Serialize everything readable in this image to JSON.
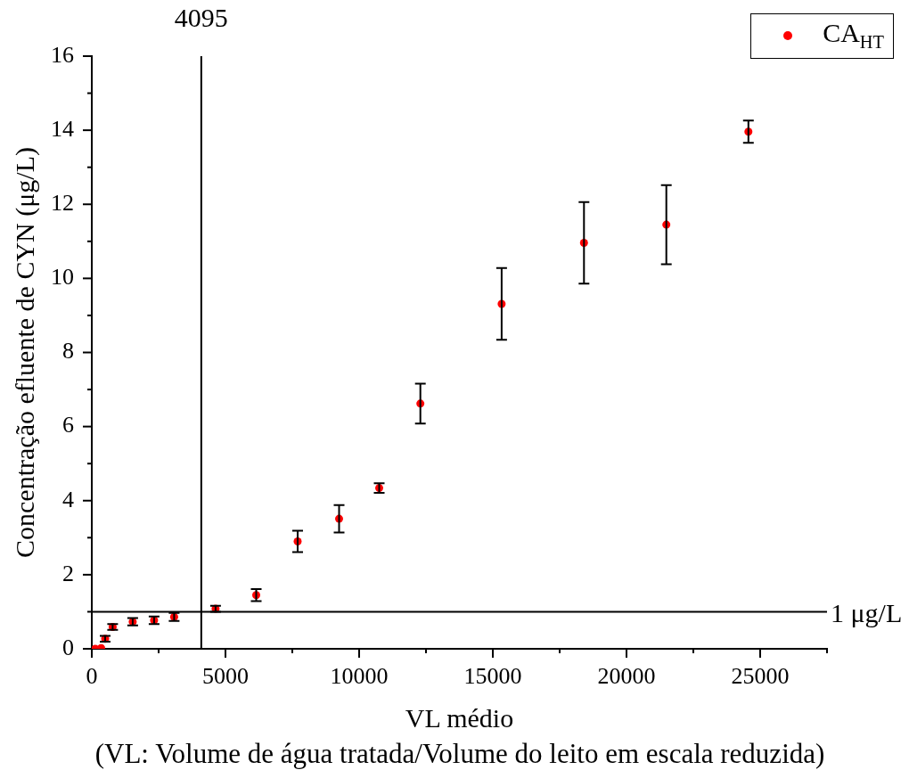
{
  "chart_data": {
    "type": "scatter",
    "xlabel": "VL médio",
    "ylabel": "Concentração efluente de CYN (μg/L)",
    "annotations": [
      "(VL: Volume de água tratada/Volume do leito em escala reduzida)"
    ],
    "series": [
      {
        "name": "CA$_{HT}$",
        "color": "#ff0000",
        "x": [
          130,
          350,
          500,
          780,
          1530,
          2330,
          3080,
          4630,
          6150,
          7700,
          9250,
          10750,
          12290,
          15330,
          18410,
          21490,
          24560
        ],
        "values": [
          0,
          0.02,
          0.27,
          0.59,
          0.73,
          0.77,
          0.86,
          1.08,
          1.45,
          2.9,
          3.51,
          4.34,
          6.62,
          9.31,
          10.96,
          11.45,
          13.96
        ],
        "errors": [
          null,
          null,
          0.08,
          0.08,
          0.1,
          0.1,
          0.11,
          0.08,
          0.16,
          0.29,
          0.37,
          0.13,
          0.54,
          0.97,
          1.1,
          1.07,
          0.3
        ]
      }
    ],
    "xlim": [
      0,
      27500
    ],
    "xticks": [
      0,
      {
        "value": 2500,
        "label": null
      },
      5000,
      {
        "value": 7500,
        "label": null
      },
      10000,
      {
        "value": 12500,
        "label": null
      },
      15000,
      {
        "value": 17500,
        "label": null
      },
      20000,
      {
        "value": 22500,
        "label": null
      },
      25000,
      {
        "value": 27500,
        "label": null
      }
    ],
    "ylim": [
      0,
      16
    ],
    "yticks": [
      0,
      {
        "value": 1,
        "label": null
      },
      2,
      {
        "value": 3,
        "label": null
      },
      4,
      {
        "value": 5,
        "label": null
      },
      6,
      {
        "value": 7,
        "label": null
      },
      8,
      {
        "value": 9,
        "label": null
      },
      10,
      {
        "value": 11,
        "label": null
      },
      12,
      {
        "value": 13,
        "label": null
      },
      14,
      {
        "value": 15,
        "label": null
      },
      16
    ],
    "ref_lines": [
      {
        "axis": "x",
        "value": 4095,
        "label": "4095",
        "color": "#000000"
      },
      {
        "axis": "y",
        "value": 1,
        "label": "1 μg/L",
        "color": "#000000"
      }
    ],
    "legend": "top right",
    "marker": "circle"
  }
}
